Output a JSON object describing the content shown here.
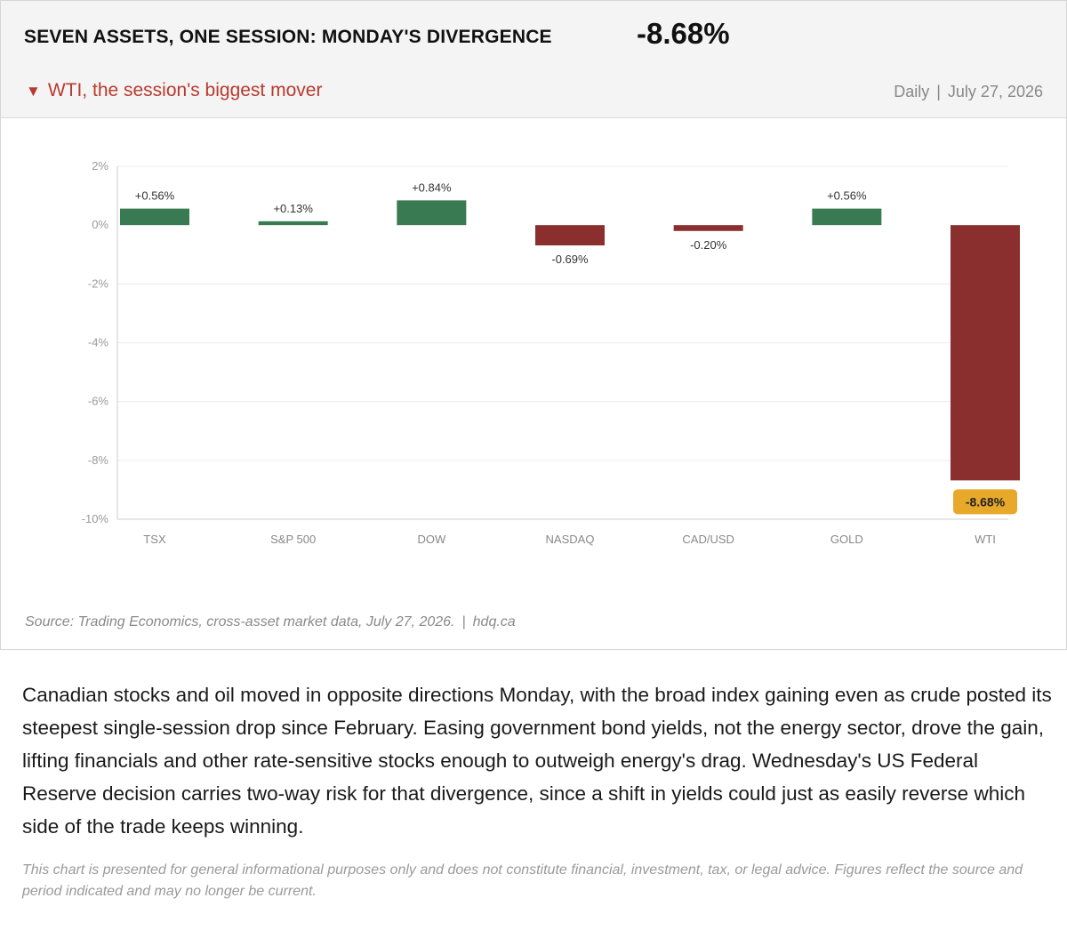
{
  "header": {
    "title": "SEVEN ASSETS, ONE SESSION: MONDAY'S DIVERGENCE",
    "headline_value": "-8.68%",
    "subtitle_arrow": "▼",
    "subtitle": "WTI, the session's biggest mover",
    "frequency": "Daily",
    "separator": "|",
    "date": "July 27, 2026"
  },
  "chart_data": {
    "type": "bar",
    "categories": [
      "TSX",
      "S&P 500",
      "DOW",
      "NASDAQ",
      "CAD/USD",
      "GOLD",
      "WTI"
    ],
    "values": [
      0.56,
      0.13,
      0.84,
      -0.69,
      -0.2,
      0.56,
      -8.68
    ],
    "labels": [
      "+0.56%",
      "+0.13%",
      "+0.84%",
      "-0.69%",
      "-0.20%",
      "+0.56%",
      "-8.68%"
    ],
    "highlight_index": 6,
    "ylim": [
      -10,
      2
    ],
    "yticks": [
      2,
      0,
      -2,
      -4,
      -6,
      -8,
      -10
    ],
    "ytick_labels": [
      "2%",
      "0%",
      "-2%",
      "-4%",
      "-6%",
      "-8%",
      "-10%"
    ],
    "grid": true,
    "colors": {
      "positive": "#3a7a52",
      "negative": "#8b2e2e",
      "highlight_badge": "#e8a82a",
      "grid": "#ececec",
      "axis": "#cccccc"
    }
  },
  "footer": {
    "source": "Source: Trading Economics, cross-asset market data, July 27, 2026.",
    "separator": "|",
    "site": "hdq.ca"
  },
  "body_text": "Canadian stocks and oil moved in opposite directions Monday, with the broad index gaining even as crude posted its steepest single-session drop since February. Easing government bond yields, not the energy sector, drove the gain, lifting financials and other rate-sensitive stocks enough to outweigh energy's drag. Wednesday's US Federal Reserve decision carries two-way risk for that divergence, since a shift in yields could just as easily reverse which side of the trade keeps winning.",
  "disclaimer": "This chart is presented for general informational purposes only and does not constitute financial, investment, tax, or legal advice. Figures reflect the source and period indicated and may no longer be current."
}
